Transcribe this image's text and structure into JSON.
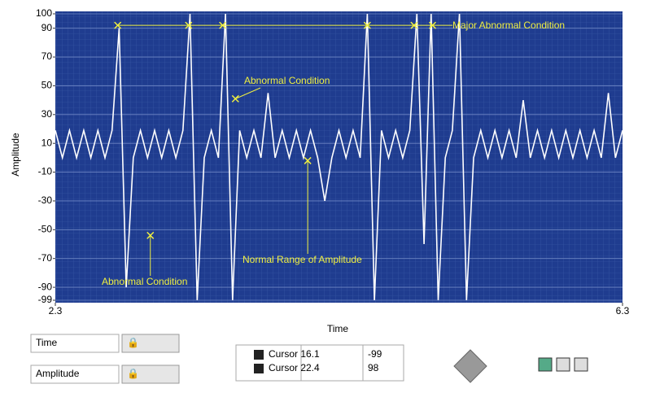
{
  "chart_data": {
    "type": "line",
    "x_label": "Time",
    "y_label": "Amplitude",
    "xlim": [
      2.3,
      6.3
    ],
    "xticks": [
      2.3,
      6.3
    ],
    "ylim": [
      -99,
      100
    ],
    "yticks": [
      100,
      90,
      70,
      50,
      30,
      10,
      -10,
      -30,
      -50,
      -70,
      -90,
      -99
    ],
    "grid": true,
    "background": "#1f3c8f",
    "series": [
      {
        "color": "#ffffff",
        "x": [
          2.3,
          2.35,
          2.4,
          2.45,
          2.5,
          2.55,
          2.6,
          2.65,
          2.7,
          2.75,
          2.8,
          2.85,
          2.9,
          2.95,
          3.0,
          3.05,
          3.1,
          3.15,
          3.2,
          3.25,
          3.3,
          3.35,
          3.4,
          3.45,
          3.5,
          3.55,
          3.6,
          3.65,
          3.7,
          3.75,
          3.8,
          3.85,
          3.9,
          3.95,
          4.0,
          4.05,
          4.1,
          4.15,
          4.2,
          4.25,
          4.3,
          4.35,
          4.4,
          4.45,
          4.5,
          4.55,
          4.6,
          4.65,
          4.7,
          4.75,
          4.8,
          4.85,
          4.9,
          4.95,
          5.0,
          5.05,
          5.1,
          5.15,
          5.2,
          5.25,
          5.3,
          5.35,
          5.4,
          5.45,
          5.5,
          5.55,
          5.6,
          5.65,
          5.7,
          5.75,
          5.8,
          5.85,
          5.9,
          5.95,
          6.0,
          6.05,
          6.1,
          6.15,
          6.2,
          6.25,
          6.3
        ],
        "values": [
          19,
          0,
          19,
          0,
          19,
          0,
          19,
          0,
          19,
          90,
          -90,
          0,
          19,
          0,
          19,
          0,
          19,
          0,
          19,
          100,
          -99,
          0,
          19,
          0,
          100,
          -99,
          19,
          0,
          19,
          0,
          45,
          0,
          19,
          0,
          19,
          0,
          19,
          0,
          -30,
          0,
          19,
          0,
          19,
          0,
          100,
          -99,
          19,
          0,
          19,
          0,
          19,
          100,
          -60,
          100,
          -99,
          0,
          19,
          100,
          -99,
          0,
          19,
          0,
          19,
          0,
          19,
          0,
          40,
          0,
          19,
          0,
          19,
          0,
          19,
          0,
          19,
          0,
          19,
          0,
          45,
          0,
          19
        ]
      }
    ],
    "annotations": [
      {
        "text": "Major Abnormal Condition",
        "x": [
          2.74,
          3.24,
          3.48,
          4.5,
          4.83,
          4.96
        ],
        "y": 92
      },
      {
        "text": "Abnormal Condition",
        "x": 3.57,
        "y": 41
      },
      {
        "text": "Abnormal Condition",
        "x": 2.97,
        "y": -54
      },
      {
        "text": "Normal Range of Amplitude",
        "x": 4.08,
        "y": -2
      }
    ],
    "annotation_color": "#f0f040"
  },
  "controls": {
    "x_name": "Time",
    "y_name": "Amplitude",
    "cursors": [
      {
        "name": "Cursor 1",
        "x": "6.1",
        "y": "-99"
      },
      {
        "name": "Cursor 2",
        "x": "2.4",
        "y": "98"
      }
    ]
  }
}
